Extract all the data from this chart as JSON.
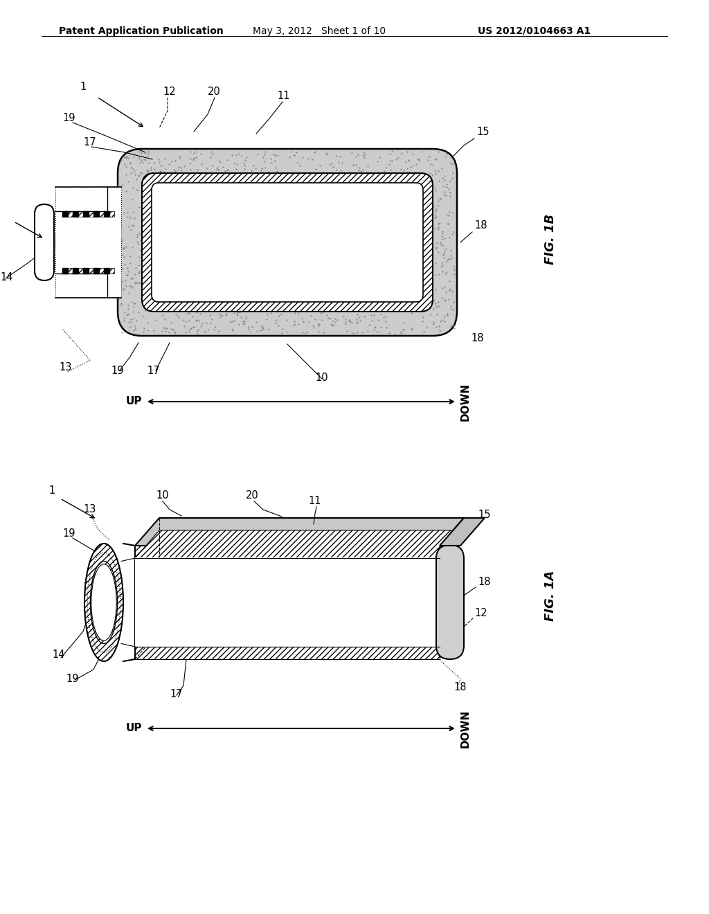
{
  "background_color": "#ffffff",
  "header_left": "Patent Application Publication",
  "header_mid": "May 3, 2012   Sheet 1 of 10",
  "header_right": "US 2012/0104663 A1",
  "fig1b_label": "FIG. 1B",
  "fig1a_label": "FIG. 1A"
}
